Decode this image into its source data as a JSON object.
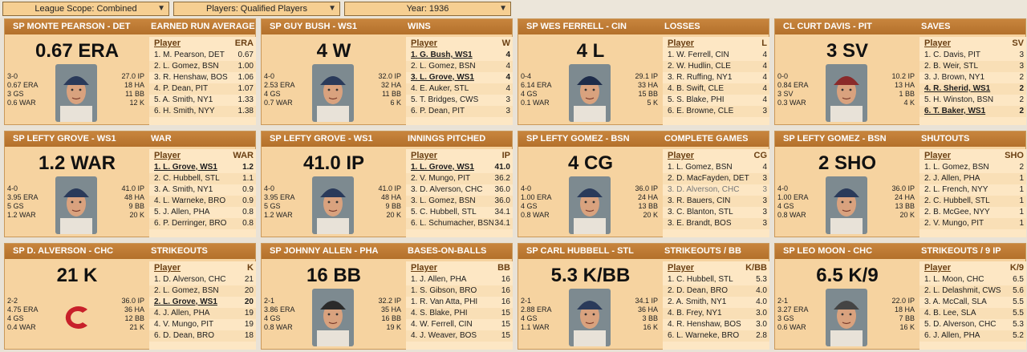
{
  "filters": {
    "league_scope": "League Scope: Combined",
    "players": "Players: Qualified Players",
    "year": "Year: 1936"
  },
  "cards": [
    {
      "player": "SP MONTE PEARSON - DET",
      "category": "EARNED RUN AVERAGE",
      "big": "0.67 ERA",
      "left": [
        "3-0",
        "0.67 ERA",
        "3 GS",
        "0.6 WAR"
      ],
      "right": [
        "27.0 IP",
        "18 HA",
        "11 BB",
        "12 K"
      ],
      "col_player": "Player",
      "col_stat": "ERA",
      "photo": "player-photo-icon",
      "rows": [
        {
          "n": "1. M. Pearson, DET",
          "v": "0.67"
        },
        {
          "n": "2. L. Gomez, BSN",
          "v": "1.00"
        },
        {
          "n": "3. R. Henshaw, BOS",
          "v": "1.06"
        },
        {
          "n": "4. P. Dean, PIT",
          "v": "1.07"
        },
        {
          "n": "5. A. Smith, NY1",
          "v": "1.33"
        },
        {
          "n": "6. H. Smith, NYY",
          "v": "1.38"
        }
      ]
    },
    {
      "player": "SP GUY BUSH - WS1",
      "category": "WINS",
      "big": "4 W",
      "left": [
        "4-0",
        "2.53 ERA",
        "4 GS",
        "0.7 WAR"
      ],
      "right": [
        "32.0 IP",
        "32 HA",
        "11 BB",
        "6 K"
      ],
      "col_player": "Player",
      "col_stat": "W",
      "photo": "player-photo-icon",
      "rows": [
        {
          "n": "1. G. Bush, WS1",
          "v": "4",
          "hl": true
        },
        {
          "n": "2. L. Gomez, BSN",
          "v": "4"
        },
        {
          "n": "3. L. Grove, WS1",
          "v": "4",
          "hl": true
        },
        {
          "n": "4. E. Auker, STL",
          "v": "4"
        },
        {
          "n": "5. T. Bridges, CWS",
          "v": "3"
        },
        {
          "n": "6. P. Dean, PIT",
          "v": "3"
        }
      ]
    },
    {
      "player": "SP WES FERRELL - CIN",
      "category": "LOSSES",
      "big": "4 L",
      "left": [
        "0-4",
        "6.14 ERA",
        "4 GS",
        "0.1 WAR"
      ],
      "right": [
        "29.1 IP",
        "33 HA",
        "15 BB",
        "5 K"
      ],
      "col_player": "Player",
      "col_stat": "L",
      "photo": "player-photo-icon",
      "rows": [
        {
          "n": "1. W. Ferrell, CIN",
          "v": "4"
        },
        {
          "n": "2. W. Hudlin, CLE",
          "v": "4"
        },
        {
          "n": "3. R. Ruffing, NY1",
          "v": "4"
        },
        {
          "n": "4. B. Swift, CLE",
          "v": "4"
        },
        {
          "n": "5. S. Blake, PHI",
          "v": "4"
        },
        {
          "n": "6. E. Browne, CLE",
          "v": "3"
        }
      ]
    },
    {
      "player": "CL CURT DAVIS - PIT",
      "category": "SAVES",
      "big": "3 SV",
      "left": [
        "0-0",
        "0.84 ERA",
        "3 SV",
        "0.3 WAR"
      ],
      "right": [
        "10.2 IP",
        "13 HA",
        "1 BB",
        "4 K"
      ],
      "col_player": "Player",
      "col_stat": "SV",
      "photo": "player-photo-icon",
      "rows": [
        {
          "n": "1. C. Davis, PIT",
          "v": "3"
        },
        {
          "n": "2. B. Weir, STL",
          "v": "3"
        },
        {
          "n": "3. J. Brown, NY1",
          "v": "2"
        },
        {
          "n": "4. R. Sherid, WS1",
          "v": "2",
          "hl": true
        },
        {
          "n": "5. H. Winston, BSN",
          "v": "2"
        },
        {
          "n": "6. T. Baker, WS1",
          "v": "2",
          "hl": true
        }
      ]
    },
    {
      "player": "SP LEFTY GROVE - WS1",
      "category": "WAR",
      "big": "1.2 WAR",
      "left": [
        "4-0",
        "3.95 ERA",
        "5 GS",
        "1.2 WAR"
      ],
      "right": [
        "41.0 IP",
        "48 HA",
        "9 BB",
        "20 K"
      ],
      "col_player": "Player",
      "col_stat": "WAR",
      "photo": "player-photo-icon",
      "rows": [
        {
          "n": "1. L. Grove, WS1",
          "v": "1.2",
          "hl": true
        },
        {
          "n": "2. C. Hubbell, STL",
          "v": "1.1"
        },
        {
          "n": "3. A. Smith, NY1",
          "v": "0.9"
        },
        {
          "n": "4. L. Warneke, BRO",
          "v": "0.9"
        },
        {
          "n": "5. J. Allen, PHA",
          "v": "0.8"
        },
        {
          "n": "6. P. Derringer, BRO",
          "v": "0.8"
        }
      ]
    },
    {
      "player": "SP LEFTY GROVE - WS1",
      "category": "INNINGS PITCHED",
      "big": "41.0 IP",
      "left": [
        "4-0",
        "3.95 ERA",
        "5 GS",
        "1.2 WAR"
      ],
      "right": [
        "41.0 IP",
        "48 HA",
        "9 BB",
        "20 K"
      ],
      "col_player": "Player",
      "col_stat": "IP",
      "photo": "player-photo-icon",
      "rows": [
        {
          "n": "1. L. Grove, WS1",
          "v": "41.0",
          "hl": true
        },
        {
          "n": "2. V. Mungo, PIT",
          "v": "36.2"
        },
        {
          "n": "3. D. Alverson, CHC",
          "v": "36.0"
        },
        {
          "n": "3. L. Gomez, BSN",
          "v": "36.0"
        },
        {
          "n": "5. C. Hubbell, STL",
          "v": "34.1"
        },
        {
          "n": "6. L. Schumacher, BSN",
          "v": "34.1"
        }
      ]
    },
    {
      "player": "SP LEFTY GOMEZ - BSN",
      "category": "COMPLETE GAMES",
      "big": "4 CG",
      "left": [
        "4-0",
        "1.00 ERA",
        "4 GS",
        "0.8 WAR"
      ],
      "right": [
        "36.0 IP",
        "24 HA",
        "13 BB",
        "20 K"
      ],
      "col_player": "Player",
      "col_stat": "CG",
      "photo": "player-photo-icon",
      "rows": [
        {
          "n": "1. L. Gomez, BSN",
          "v": "4"
        },
        {
          "n": "2. D. MacFayden, DET",
          "v": "3"
        },
        {
          "n": "3. D. Alverson, CHC",
          "v": "3",
          "gr": true
        },
        {
          "n": "3. R. Bauers, CIN",
          "v": "3"
        },
        {
          "n": "3. C. Blanton, STL",
          "v": "3"
        },
        {
          "n": "3. E. Brandt, BOS",
          "v": "3"
        }
      ]
    },
    {
      "player": "SP LEFTY GOMEZ - BSN",
      "category": "SHUTOUTS",
      "big": "2 SHO",
      "left": [
        "4-0",
        "1.00 ERA",
        "4 GS",
        "0.8 WAR"
      ],
      "right": [
        "36.0 IP",
        "24 HA",
        "13 BB",
        "20 K"
      ],
      "col_player": "Player",
      "col_stat": "SHO",
      "photo": "player-photo-icon",
      "rows": [
        {
          "n": "1. L. Gomez, BSN",
          "v": "2"
        },
        {
          "n": "2. J. Allen, PHA",
          "v": "1"
        },
        {
          "n": "2. L. French, NYY",
          "v": "1"
        },
        {
          "n": "2. C. Hubbell, STL",
          "v": "1"
        },
        {
          "n": "2. B. McGee, NYY",
          "v": "1"
        },
        {
          "n": "2. V. Mungo, PIT",
          "v": "1"
        }
      ]
    },
    {
      "player": "SP D. ALVERSON - CHC",
      "category": "STRIKEOUTS",
      "big": "21 K",
      "left": [
        "2-2",
        "4.75 ERA",
        "4 GS",
        "0.4 WAR"
      ],
      "right": [
        "36.0 IP",
        "36 HA",
        "12 BB",
        "21 K"
      ],
      "col_player": "Player",
      "col_stat": "K",
      "photo": "team-logo-icon",
      "rows": [
        {
          "n": "1. D. Alverson, CHC",
          "v": "21"
        },
        {
          "n": "2. L. Gomez, BSN",
          "v": "20"
        },
        {
          "n": "2. L. Grove, WS1",
          "v": "20",
          "hl": true
        },
        {
          "n": "4. J. Allen, PHA",
          "v": "19"
        },
        {
          "n": "4. V. Mungo, PIT",
          "v": "19"
        },
        {
          "n": "6. D. Dean, BRO",
          "v": "18"
        }
      ]
    },
    {
      "player": "SP JOHNNY ALLEN - PHA",
      "category": "BASES-ON-BALLS",
      "big": "16 BB",
      "left": [
        "2-1",
        "3.86 ERA",
        "4 GS",
        "0.8 WAR"
      ],
      "right": [
        "32.2 IP",
        "35 HA",
        "16 BB",
        "19 K"
      ],
      "col_player": "Player",
      "col_stat": "BB",
      "photo": "player-photo-icon",
      "rows": [
        {
          "n": "1. J. Allen, PHA",
          "v": "16"
        },
        {
          "n": "1. S. Gibson, BRO",
          "v": "16"
        },
        {
          "n": "1. R. Van Atta, PHI",
          "v": "16"
        },
        {
          "n": "4. S. Blake, PHI",
          "v": "15"
        },
        {
          "n": "4. W. Ferrell, CIN",
          "v": "15"
        },
        {
          "n": "4. J. Weaver, BOS",
          "v": "15"
        }
      ]
    },
    {
      "player": "SP CARL HUBBELL - STL",
      "category": "STRIKEOUTS / BB",
      "big": "5.3 K/BB",
      "left": [
        "2-1",
        "2.88 ERA",
        "4 GS",
        "1.1 WAR"
      ],
      "right": [
        "34.1 IP",
        "36 HA",
        "3 BB",
        "16 K"
      ],
      "col_player": "Player",
      "col_stat": "K/BB",
      "photo": "player-photo-icon",
      "rows": [
        {
          "n": "1. C. Hubbell, STL",
          "v": "5.3"
        },
        {
          "n": "2. D. Dean, BRO",
          "v": "4.0"
        },
        {
          "n": "2. A. Smith, NY1",
          "v": "4.0"
        },
        {
          "n": "4. B. Frey, NY1",
          "v": "3.0"
        },
        {
          "n": "4. R. Henshaw, BOS",
          "v": "3.0"
        },
        {
          "n": "6. L. Warneke, BRO",
          "v": "2.8"
        }
      ]
    },
    {
      "player": "SP LEO MOON - CHC",
      "category": "STRIKEOUTS / 9 IP",
      "big": "6.5 K/9",
      "left": [
        "2-1",
        "3.27 ERA",
        "3 GS",
        "0.6 WAR"
      ],
      "right": [
        "22.0 IP",
        "18 HA",
        "7 BB",
        "16 K"
      ],
      "col_player": "Player",
      "col_stat": "K/9",
      "photo": "player-photo-icon",
      "rows": [
        {
          "n": "1. L. Moon, CHC",
          "v": "6.5"
        },
        {
          "n": "2. L. Delashmit, CWS",
          "v": "5.6"
        },
        {
          "n": "3. A. McCall, SLA",
          "v": "5.5"
        },
        {
          "n": "4. B. Lee, SLA",
          "v": "5.5"
        },
        {
          "n": "5. D. Alverson, CHC",
          "v": "5.3"
        },
        {
          "n": "6. J. Allen, PHA",
          "v": "5.2"
        }
      ]
    }
  ]
}
